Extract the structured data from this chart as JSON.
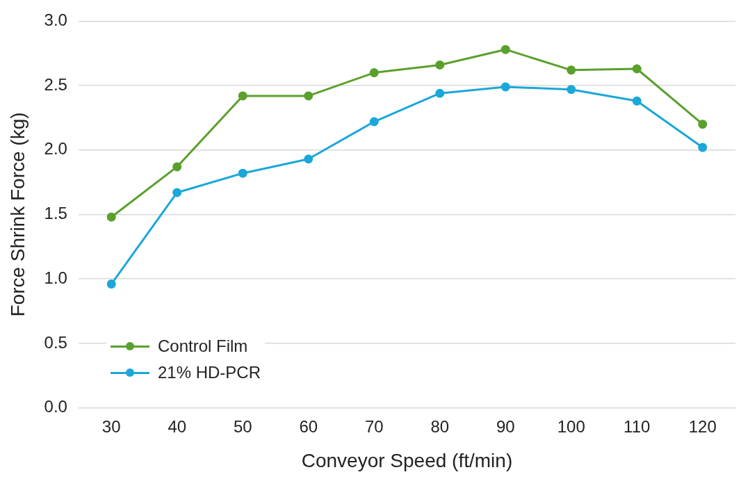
{
  "chart_data": {
    "type": "line",
    "xlabel": "Conveyor Speed (ft/min)",
    "ylabel": "Force Shrink Force (kg)",
    "categories": [
      "30",
      "40",
      "50",
      "60",
      "70",
      "80",
      "90",
      "100",
      "110",
      "120"
    ],
    "series": [
      {
        "name": "Control Film",
        "color": "#5aa02c",
        "values": [
          1.48,
          1.87,
          2.42,
          2.42,
          2.6,
          2.66,
          2.78,
          2.62,
          2.63,
          2.2
        ]
      },
      {
        "name": "21% HD-PCR",
        "color": "#1ba7d9",
        "values": [
          0.96,
          1.67,
          1.82,
          1.93,
          2.22,
          2.44,
          2.49,
          2.47,
          2.38,
          2.02
        ]
      }
    ],
    "ylim": [
      0,
      3
    ],
    "yticks": [
      {
        "value": 0,
        "label": "0.0"
      },
      {
        "value": 0.5,
        "label": "0.5"
      },
      {
        "value": 1,
        "label": "1.0"
      },
      {
        "value": 1.5,
        "label": "1.5"
      },
      {
        "value": 2,
        "label": "2.0"
      },
      {
        "value": 2.5,
        "label": "2.5"
      },
      {
        "value": 3,
        "label": "3.0"
      }
    ],
    "grid": "y",
    "legend": "bottom left",
    "marker": "circle",
    "line_style": "solid"
  }
}
